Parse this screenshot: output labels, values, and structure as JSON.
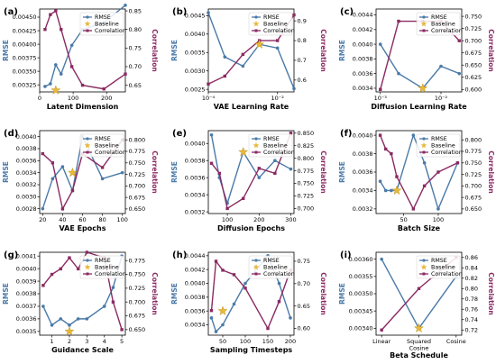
{
  "colors": {
    "rmse": "#4a7aa8",
    "corr": "#8a2a62",
    "baseline": "#e8b83a"
  },
  "chart_data": [
    {
      "type": "line",
      "panel_label": "(a)",
      "xlabel": "Latent Dimension",
      "ylabel_left": "RMSE",
      "ylabel_right": "Correlation",
      "x": [
        16,
        32,
        48,
        64,
        96,
        128,
        192,
        256
      ],
      "series": [
        {
          "name": "RMSE",
          "axis": "left",
          "values": [
            0.00322,
            0.00327,
            0.00362,
            0.00345,
            0.00398,
            0.00427,
            0.0044,
            0.00472
          ]
        },
        {
          "name": "Correlation",
          "axis": "right",
          "values": [
            0.8,
            0.84,
            0.85,
            0.8,
            0.7,
            0.65,
            0.64,
            0.68
          ]
        }
      ],
      "baseline": {
        "name": "Baseline",
        "x": 48,
        "y": 0.00315
      },
      "xlim": [
        0,
        256
      ],
      "xticks": [
        {
          "v": 0,
          "l": "0"
        },
        {
          "v": 100,
          "l": "100"
        },
        {
          "v": 200,
          "l": "200"
        }
      ],
      "ylim_left": [
        0.00312,
        0.00465
      ],
      "yticks_left": [
        {
          "v": 0.00325,
          "l": "0.00325"
        },
        {
          "v": 0.0035,
          "l": "0.00350"
        },
        {
          "v": 0.00375,
          "l": "0.00375"
        },
        {
          "v": 0.004,
          "l": "0.00400"
        },
        {
          "v": 0.00425,
          "l": "0.00425"
        },
        {
          "v": 0.0045,
          "l": "0.00450"
        }
      ],
      "ylim_right": [
        0.632,
        0.855
      ],
      "yticks_right": [
        {
          "v": 0.65,
          "l": "0.65"
        },
        {
          "v": 0.7,
          "l": "0.70"
        },
        {
          "v": 0.75,
          "l": "0.75"
        },
        {
          "v": 0.8,
          "l": "0.80"
        },
        {
          "v": 0.85,
          "l": "0.85"
        }
      ],
      "legend_position": "top-right"
    },
    {
      "type": "line",
      "panel_label": "(b)",
      "xlabel": "VAE Learning Rate",
      "ylabel_left": "RMSE",
      "ylabel_right": "Correlation",
      "xscale": "log",
      "x": [
        0.0001,
        0.0003,
        0.001,
        0.003,
        0.01,
        0.03
      ],
      "series": [
        {
          "name": "RMSE",
          "axis": "left",
          "values": [
            0.00458,
            0.00338,
            0.00313,
            0.00372,
            0.00362,
            0.00252
          ]
        },
        {
          "name": "Correlation",
          "axis": "right",
          "values": [
            0.58,
            0.62,
            0.73,
            0.8,
            0.8,
            0.93
          ]
        }
      ],
      "baseline": {
        "name": "Baseline",
        "x": 0.003,
        "y": 0.00372
      },
      "xlim": [
        0.0001,
        0.03
      ],
      "xticks": [
        {
          "v": 0.0001,
          "l": "10⁻⁴"
        },
        {
          "v": 0.01,
          "l": "10⁻²"
        }
      ],
      "ylim_left": [
        0.00243,
        0.00468
      ],
      "yticks_left": [
        {
          "v": 0.0025,
          "l": "0.0025"
        },
        {
          "v": 0.003,
          "l": "0.0030"
        },
        {
          "v": 0.0035,
          "l": "0.0035"
        },
        {
          "v": 0.004,
          "l": "0.0040"
        },
        {
          "v": 0.0045,
          "l": "0.0045"
        }
      ],
      "ylim_right": [
        0.54,
        0.96
      ],
      "yticks_right": [
        {
          "v": 0.6,
          "l": "0.6"
        },
        {
          "v": 0.7,
          "l": "0.7"
        },
        {
          "v": 0.8,
          "l": "0.8"
        },
        {
          "v": 0.9,
          "l": "0.9"
        }
      ],
      "legend_position": "top-right"
    },
    {
      "type": "line",
      "panel_label": "(c)",
      "xlabel": "Diffusion Learning Rate",
      "ylabel_left": "RMSE",
      "ylabel_right": "Correlation",
      "xscale": "log",
      "x": [
        0.001,
        0.002,
        0.005,
        0.01,
        0.02
      ],
      "series": [
        {
          "name": "RMSE",
          "axis": "left",
          "values": [
            0.004,
            0.0036,
            0.0034,
            0.0037,
            0.0036
          ]
        },
        {
          "name": "Correlation",
          "axis": "right",
          "values": [
            0.6,
            0.74,
            0.74,
            0.74,
            0.7
          ]
        }
      ],
      "baseline": {
        "name": "Baseline",
        "x": 0.005,
        "y": 0.0034
      },
      "xlim": [
        0.00085,
        0.022
      ],
      "xticks": [
        {
          "v": 0.001,
          "l": "10⁻³"
        },
        {
          "v": 0.01,
          "l": "10⁻²"
        }
      ],
      "ylim_left": [
        0.00335,
        0.00448
      ],
      "yticks_left": [
        {
          "v": 0.0034,
          "l": "0.0034"
        },
        {
          "v": 0.0036,
          "l": "0.0036"
        },
        {
          "v": 0.0038,
          "l": "0.0038"
        },
        {
          "v": 0.004,
          "l": "0.0040"
        },
        {
          "v": 0.0042,
          "l": "0.0042"
        },
        {
          "v": 0.0044,
          "l": "0.0044"
        }
      ],
      "ylim_right": [
        0.595,
        0.765
      ],
      "yticks_right": [
        {
          "v": 0.6,
          "l": "0.600"
        },
        {
          "v": 0.625,
          "l": "0.625"
        },
        {
          "v": 0.65,
          "l": "0.650"
        },
        {
          "v": 0.675,
          "l": "0.675"
        },
        {
          "v": 0.7,
          "l": "0.700"
        },
        {
          "v": 0.725,
          "l": "0.725"
        },
        {
          "v": 0.75,
          "l": "0.750"
        }
      ],
      "legend_position": "top-right"
    },
    {
      "type": "line",
      "panel_label": "(d)",
      "xlabel": "VAE Epochs",
      "ylabel_left": "RMSE",
      "ylabel_right": "Correlation",
      "x": [
        20,
        30,
        40,
        50,
        60,
        80,
        100
      ],
      "series": [
        {
          "name": "RMSE",
          "axis": "left",
          "values": [
            0.0028,
            0.0033,
            0.0035,
            0.0031,
            0.004,
            0.0033,
            0.0034
          ]
        },
        {
          "name": "Correlation",
          "axis": "right",
          "values": [
            0.77,
            0.75,
            0.65,
            0.69,
            0.77,
            0.74,
            0.8
          ]
        }
      ],
      "baseline": {
        "name": "Baseline",
        "x": 50,
        "y": 0.0034
      },
      "xlim": [
        17,
        103
      ],
      "xticks": [
        {
          "v": 20,
          "l": "20"
        },
        {
          "v": 40,
          "l": "40"
        },
        {
          "v": 60,
          "l": "60"
        },
        {
          "v": 80,
          "l": "80"
        },
        {
          "v": 100,
          "l": "100"
        }
      ],
      "ylim_left": [
        0.00272,
        0.0041
      ],
      "yticks_left": [
        {
          "v": 0.0028,
          "l": "0.0028"
        },
        {
          "v": 0.003,
          "l": "0.0030"
        },
        {
          "v": 0.0032,
          "l": "0.0032"
        },
        {
          "v": 0.0034,
          "l": "0.0034"
        },
        {
          "v": 0.0036,
          "l": "0.0036"
        },
        {
          "v": 0.0038,
          "l": "0.0038"
        },
        {
          "v": 0.004,
          "l": "0.0040"
        }
      ],
      "ylim_right": [
        0.64,
        0.82
      ],
      "yticks_right": [
        {
          "v": 0.65,
          "l": "0.650"
        },
        {
          "v": 0.675,
          "l": "0.675"
        },
        {
          "v": 0.7,
          "l": "0.700"
        },
        {
          "v": 0.725,
          "l": "0.725"
        },
        {
          "v": 0.75,
          "l": "0.750"
        },
        {
          "v": 0.775,
          "l": "0.775"
        },
        {
          "v": 0.8,
          "l": "0.800"
        }
      ],
      "legend_position": "top-right"
    },
    {
      "type": "line",
      "panel_label": "(e)",
      "xlabel": "Diffusion Epochs",
      "ylabel_left": "RMSE",
      "ylabel_right": "Correlation",
      "x": [
        50,
        75,
        100,
        150,
        200,
        250,
        300
      ],
      "series": [
        {
          "name": "RMSE",
          "axis": "left",
          "values": [
            0.0041,
            0.0036,
            0.0033,
            0.0039,
            0.0036,
            0.0038,
            0.0037
          ]
        },
        {
          "name": "Correlation",
          "axis": "right",
          "values": [
            0.79,
            0.77,
            0.7,
            0.72,
            0.78,
            0.77,
            0.85
          ]
        }
      ],
      "baseline": {
        "name": "Baseline",
        "x": 150,
        "y": 0.0039
      },
      "xlim": [
        40,
        310
      ],
      "xticks": [
        {
          "v": 100,
          "l": "100"
        },
        {
          "v": 200,
          "l": "200"
        },
        {
          "v": 300,
          "l": "300"
        }
      ],
      "ylim_left": [
        0.00318,
        0.00415
      ],
      "yticks_left": [
        {
          "v": 0.0032,
          "l": "0.0032"
        },
        {
          "v": 0.0034,
          "l": "0.0034"
        },
        {
          "v": 0.0036,
          "l": "0.0036"
        },
        {
          "v": 0.0038,
          "l": "0.0038"
        },
        {
          "v": 0.004,
          "l": "0.0040"
        }
      ],
      "ylim_right": [
        0.69,
        0.855
      ],
      "yticks_right": [
        {
          "v": 0.7,
          "l": "0.700"
        },
        {
          "v": 0.725,
          "l": "0.725"
        },
        {
          "v": 0.75,
          "l": "0.750"
        },
        {
          "v": 0.775,
          "l": "0.775"
        },
        {
          "v": 0.8,
          "l": "0.800"
        },
        {
          "v": 0.825,
          "l": "0.825"
        },
        {
          "v": 0.85,
          "l": "0.850"
        }
      ],
      "legend_position": "top-right"
    },
    {
      "type": "line",
      "panel_label": "(f)",
      "xlabel": "Batch Size",
      "ylabel_left": "RMSE",
      "ylabel_right": "Correlation",
      "x": [
        16,
        24,
        32,
        40,
        64,
        80,
        100,
        128
      ],
      "series": [
        {
          "name": "RMSE",
          "axis": "left",
          "values": [
            0.0035,
            0.0034,
            0.0034,
            0.0034,
            0.004,
            0.0037,
            0.0032,
            0.0037
          ]
        },
        {
          "name": "Correlation",
          "axis": "right",
          "values": [
            0.81,
            0.78,
            0.77,
            0.72,
            0.65,
            0.7,
            0.73,
            0.75
          ]
        }
      ],
      "baseline": {
        "name": "Baseline",
        "x": 40,
        "y": 0.0034
      },
      "xlim": [
        10,
        134
      ],
      "xticks": [
        {
          "v": 50,
          "l": "50"
        },
        {
          "v": 100,
          "l": "100"
        }
      ],
      "ylim_left": [
        0.00315,
        0.00405
      ],
      "yticks_left": [
        {
          "v": 0.0032,
          "l": "0.0032"
        },
        {
          "v": 0.0034,
          "l": "0.0034"
        },
        {
          "v": 0.0036,
          "l": "0.0036"
        },
        {
          "v": 0.0038,
          "l": "0.0038"
        },
        {
          "v": 0.004,
          "l": "0.0040"
        }
      ],
      "ylim_right": [
        0.64,
        0.82
      ],
      "yticks_right": [
        {
          "v": 0.65,
          "l": "0.650"
        },
        {
          "v": 0.675,
          "l": "0.675"
        },
        {
          "v": 0.7,
          "l": "0.700"
        },
        {
          "v": 0.725,
          "l": "0.725"
        },
        {
          "v": 0.75,
          "l": "0.750"
        },
        {
          "v": 0.775,
          "l": "0.775"
        },
        {
          "v": 0.8,
          "l": "0.800"
        }
      ],
      "legend_position": "top-right"
    },
    {
      "type": "line",
      "panel_label": "(g)",
      "xlabel": "Guidance Scale",
      "ylabel_left": "RMSE",
      "ylabel_right": "Correlation",
      "x": [
        0.5,
        1,
        1.5,
        2,
        2.5,
        3,
        4,
        4.5,
        5
      ],
      "series": [
        {
          "name": "RMSE",
          "axis": "left",
          "values": [
            0.0037,
            0.00355,
            0.0036,
            0.00355,
            0.0036,
            0.0036,
            0.0037,
            0.00385,
            0.0041
          ]
        },
        {
          "name": "Correlation",
          "axis": "right",
          "values": [
            0.73,
            0.75,
            0.76,
            0.78,
            0.76,
            0.79,
            0.78,
            0.7,
            0.65
          ]
        }
      ],
      "baseline": {
        "name": "Baseline",
        "x": 2,
        "y": 0.0035
      },
      "xlim": [
        0.3,
        5.2
      ],
      "xticks": [
        {
          "v": 1,
          "l": "1"
        },
        {
          "v": 2,
          "l": "2"
        },
        {
          "v": 3,
          "l": "3"
        },
        {
          "v": 4,
          "l": "4"
        },
        {
          "v": 5,
          "l": "5"
        }
      ],
      "ylim_left": [
        0.00347,
        0.00413
      ],
      "yticks_left": [
        {
          "v": 0.0035,
          "l": "0.0035"
        },
        {
          "v": 0.0036,
          "l": "0.0036"
        },
        {
          "v": 0.0037,
          "l": "0.0037"
        },
        {
          "v": 0.0038,
          "l": "0.0038"
        },
        {
          "v": 0.0039,
          "l": "0.0039"
        },
        {
          "v": 0.004,
          "l": "0.0040"
        },
        {
          "v": 0.0041,
          "l": "0.0041"
        }
      ],
      "ylim_right": [
        0.64,
        0.79
      ],
      "yticks_right": [
        {
          "v": 0.65,
          "l": "0.650"
        },
        {
          "v": 0.675,
          "l": "0.675"
        },
        {
          "v": 0.7,
          "l": "0.700"
        },
        {
          "v": 0.725,
          "l": "0.725"
        },
        {
          "v": 0.75,
          "l": "0.750"
        },
        {
          "v": 0.775,
          "l": "0.775"
        }
      ],
      "legend_position": "top-right"
    },
    {
      "type": "line",
      "panel_label": "(h)",
      "xlabel": "Sampling Timesteps",
      "ylabel_left": "RMSE",
      "ylabel_right": "Correlation",
      "x": [
        25,
        35,
        50,
        75,
        100,
        150,
        175,
        200
      ],
      "series": [
        {
          "name": "RMSE",
          "axis": "left",
          "values": [
            0.0035,
            0.0033,
            0.0034,
            0.0037,
            0.004,
            0.0044,
            0.004,
            0.0035
          ]
        },
        {
          "name": "Correlation",
          "axis": "right",
          "values": [
            0.64,
            0.75,
            0.73,
            0.72,
            0.69,
            0.6,
            0.66,
            0.73
          ]
        }
      ],
      "baseline": {
        "name": "Baseline",
        "x": 50,
        "y": 0.0036
      },
      "xlim": [
        18,
        208
      ],
      "xticks": [
        {
          "v": 50,
          "l": "50"
        },
        {
          "v": 100,
          "l": "100"
        },
        {
          "v": 150,
          "l": "150"
        },
        {
          "v": 200,
          "l": "200"
        }
      ],
      "ylim_left": [
        0.00325,
        0.00445
      ],
      "yticks_left": [
        {
          "v": 0.0034,
          "l": "0.0034"
        },
        {
          "v": 0.0036,
          "l": "0.0036"
        },
        {
          "v": 0.0038,
          "l": "0.0038"
        },
        {
          "v": 0.004,
          "l": "0.0040"
        },
        {
          "v": 0.0042,
          "l": "0.0042"
        },
        {
          "v": 0.0044,
          "l": "0.0044"
        }
      ],
      "ylim_right": [
        0.585,
        0.77
      ],
      "yticks_right": [
        {
          "v": 0.6,
          "l": "0.60"
        },
        {
          "v": 0.65,
          "l": "0.65"
        },
        {
          "v": 0.7,
          "l": "0.70"
        },
        {
          "v": 0.75,
          "l": "0.75"
        }
      ],
      "legend_position": "top-right"
    },
    {
      "type": "line",
      "panel_label": "(i)",
      "xlabel": "Beta Schedule",
      "ylabel_left": "RMSE",
      "ylabel_right": "Correlation",
      "xscale": "categorical",
      "categories": [
        "Linear",
        "Squared\nCosine",
        "Cosine"
      ],
      "x": [
        0,
        1,
        2
      ],
      "series": [
        {
          "name": "RMSE",
          "axis": "left",
          "values": [
            0.0036,
            0.0034,
            0.00355
          ]
        },
        {
          "name": "Correlation",
          "axis": "right",
          "values": [
            0.72,
            0.8,
            0.86
          ]
        }
      ],
      "baseline": {
        "name": "Baseline",
        "x": 1,
        "y": 0.0034
      },
      "xlim": [
        -0.15,
        2.15
      ],
      "xticks": [
        {
          "v": 0,
          "l": "Linear"
        },
        {
          "v": 1,
          "l": "Squared\nCosine"
        },
        {
          "v": 2,
          "l": "Cosine"
        }
      ],
      "ylim_left": [
        0.00338,
        0.00362
      ],
      "yticks_left": [
        {
          "v": 0.0034,
          "l": "0.00340"
        },
        {
          "v": 0.00345,
          "l": "0.00345"
        },
        {
          "v": 0.0035,
          "l": "0.00350"
        },
        {
          "v": 0.00355,
          "l": "0.00355"
        },
        {
          "v": 0.0036,
          "l": "0.00360"
        }
      ],
      "ylim_right": [
        0.71,
        0.87
      ],
      "yticks_right": [
        {
          "v": 0.72,
          "l": "0.72"
        },
        {
          "v": 0.74,
          "l": "0.74"
        },
        {
          "v": 0.76,
          "l": "0.76"
        },
        {
          "v": 0.78,
          "l": "0.78"
        },
        {
          "v": 0.8,
          "l": "0.80"
        },
        {
          "v": 0.82,
          "l": "0.82"
        },
        {
          "v": 0.84,
          "l": "0.84"
        },
        {
          "v": 0.86,
          "l": "0.86"
        }
      ],
      "legend_position": "top-right"
    }
  ]
}
